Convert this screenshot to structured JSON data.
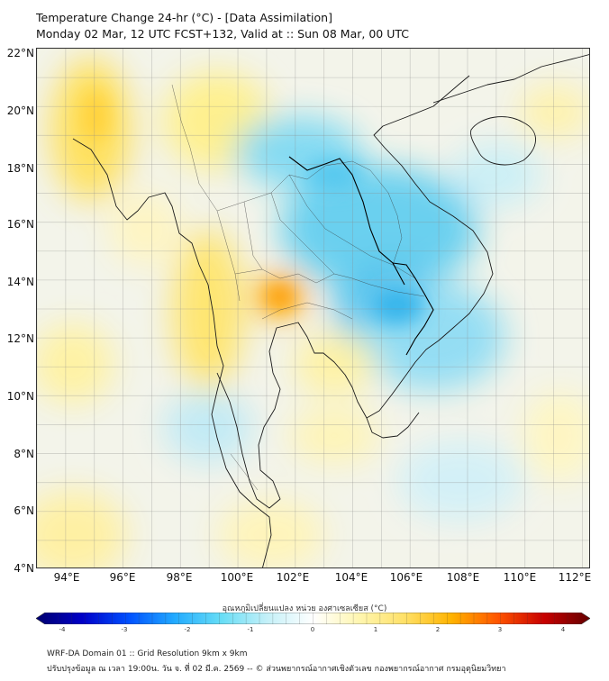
{
  "header": {
    "title": "Temperature Change 24-hr (°C) - [Data Assimilation]",
    "subtitle": "Monday 02 Mar, 12 UTC FCST+132, Valid at :: Sun 08 Mar, 00 UTC"
  },
  "map": {
    "variable": "24-hr temperature change",
    "lat_labels": [
      "22°N",
      "20°N",
      "18°N",
      "16°N",
      "14°N",
      "12°N",
      "10°N",
      "8°N",
      "6°N",
      "4°N"
    ],
    "lon_labels": [
      "94°E",
      "96°E",
      "98°E",
      "100°E",
      "102°E",
      "104°E",
      "106°E",
      "108°E",
      "110°E",
      "112°E"
    ],
    "lat_range": [
      4,
      22
    ],
    "lon_range": [
      93,
      112.3
    ],
    "gridlines": true
  },
  "colorbar": {
    "label": "อุณหภูมิเปลี่ยนแปลง หน่วย องศาเซลเซียส (°C)",
    "min": -4,
    "max": 4,
    "tick_labels": [
      "-4",
      "-3",
      "-2",
      "-1",
      "0",
      "1",
      "2",
      "3",
      "4"
    ],
    "colors": [
      "#00006e",
      "#0000c8",
      "#0050ff",
      "#22aaff",
      "#66ddf6",
      "#c4f0f8",
      "#ffffff",
      "#fff6b0",
      "#ffe066",
      "#ffb300",
      "#ff5500",
      "#c80000",
      "#640000"
    ]
  },
  "footer": {
    "line1": "WRF-DA Domain 01 :: Grid Resolution 9km x 9km",
    "line2": "ปรับปรุงข้อมูล ณ เวลา 19:00น. วัน จ. ที่ 02 มี.ค. 2569 -- © ส่วนพยากรณ์อากาศเชิงตัวเลข กองพยากรณ์อากาศ กรมอุตุนิยมวิทยา"
  }
}
